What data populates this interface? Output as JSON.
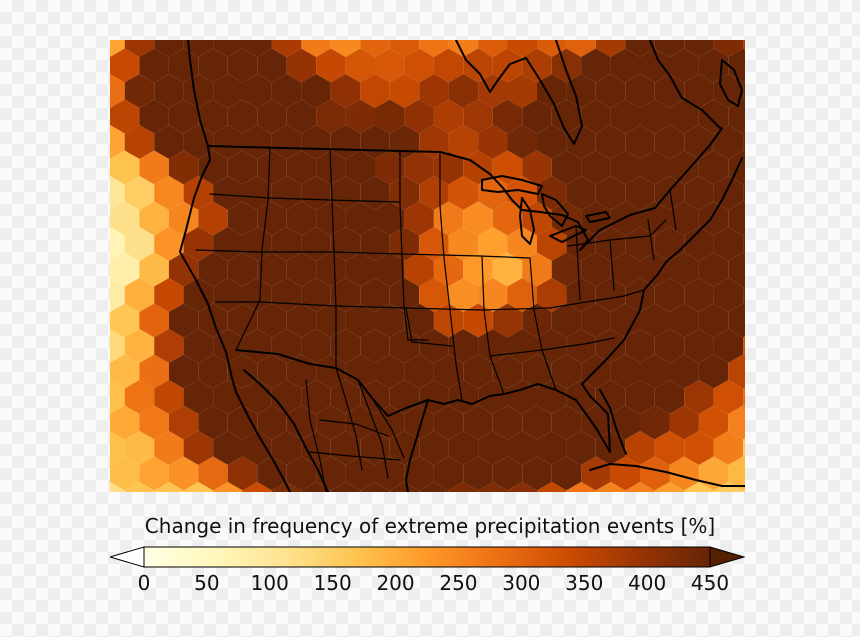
{
  "colorbar": {
    "title": "Change in frequency of extreme precipitation events [%]",
    "min": 0,
    "max": 450,
    "ticks": [
      "0",
      "50",
      "100",
      "150",
      "200",
      "250",
      "300",
      "350",
      "400",
      "450"
    ],
    "extend": "both",
    "colormap": "YlOrBr",
    "stops": [
      "#ffffe5",
      "#fff7bc",
      "#fee391",
      "#fec44f",
      "#fe9929",
      "#ec7014",
      "#cc4c02",
      "#993404",
      "#662506"
    ]
  },
  "map": {
    "projection": "conic",
    "boundaries": "North America coastlines, country and state borders",
    "cell_shape": "hexagon"
  }
}
